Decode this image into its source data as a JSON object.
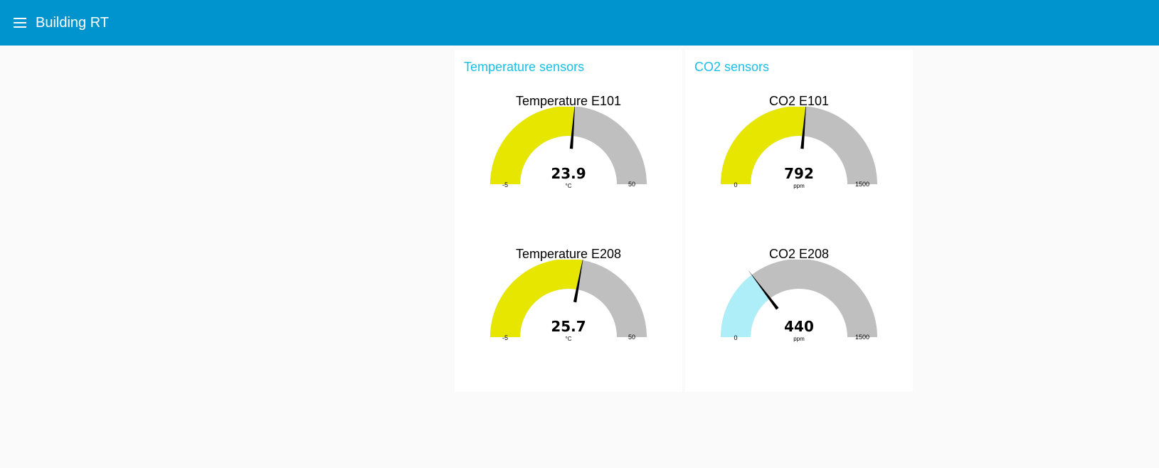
{
  "header": {
    "title": "Building RT",
    "menu_icon": "menu-icon"
  },
  "colors": {
    "toolbar": "#0094ce",
    "group_title": "#1bbfe8",
    "gauge_track": "#bfbfbf",
    "gauge_yellow": "#e6e600",
    "gauge_cyan": "#aeeef8",
    "needle": "#000000"
  },
  "groups": [
    {
      "title": "Temperature sensors",
      "gauges": [
        {
          "label": "Temperature E101",
          "value": 23.9,
          "display": "23.9",
          "unit": "°C",
          "min": -5,
          "max": 50,
          "min_label": "-5",
          "max_label": "50",
          "color": "#e6e600"
        },
        {
          "label": "Temperature E208",
          "value": 25.7,
          "display": "25.7",
          "unit": "°C",
          "min": -5,
          "max": 50,
          "min_label": "-5",
          "max_label": "50",
          "color": "#e6e600"
        }
      ]
    },
    {
      "title": "CO2 sensors",
      "gauges": [
        {
          "label": "CO2 E101",
          "value": 792,
          "display": "792",
          "unit": "ppm",
          "min": 0,
          "max": 1500,
          "min_label": "0",
          "max_label": "1500",
          "color": "#e6e600"
        },
        {
          "label": "CO2 E208",
          "value": 440,
          "display": "440",
          "unit": "ppm",
          "min": 0,
          "max": 1500,
          "min_label": "0",
          "max_label": "1500",
          "color": "#aeeef8"
        }
      ]
    }
  ]
}
